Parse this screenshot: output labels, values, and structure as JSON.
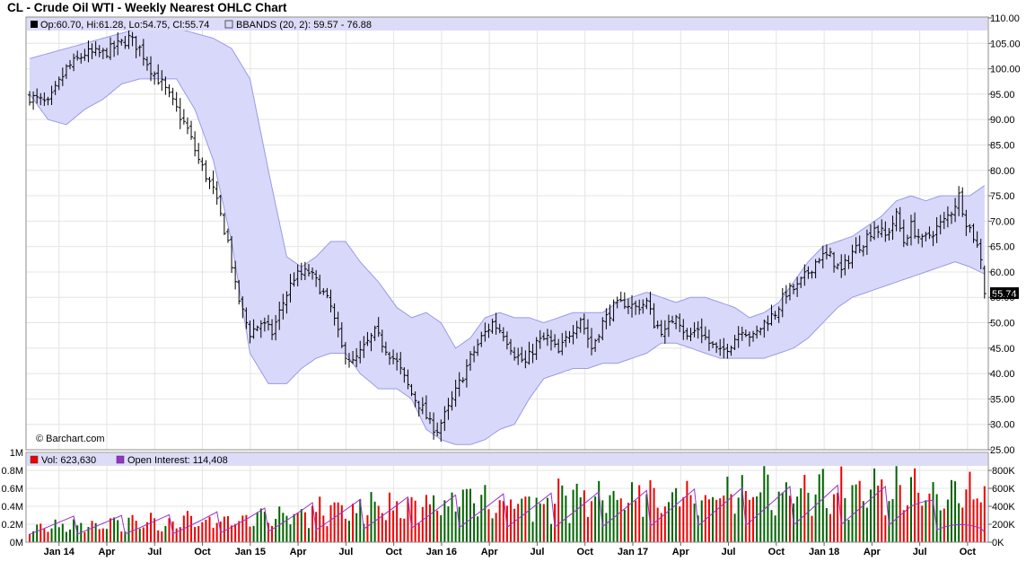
{
  "title": "CL - Crude Oil WTI - Weekly Nearest OHLC Chart",
  "watermark": "© Barchart.com",
  "price_legend": {
    "ohlc": "Op:60.70, Hi:61.28, Lo:54.75, Cl:55.74",
    "bbands": "BBANDS (20, 2): 59.57 - 76.88"
  },
  "last_price_label": "55.74",
  "volume_legend": {
    "vol": "Vol: 623,630",
    "oi": "Open Interest: 114,408"
  },
  "colors": {
    "ohlc_bar": "#000000",
    "band_fill": "#d8d8fb",
    "band_line": "#9a9ae8",
    "volume_up": "#006400",
    "volume_down": "#ee0000",
    "open_interest": "#9932cc",
    "grid": "#e4e4e4",
    "legend_band": "#dcdcf8"
  },
  "chart_data": [
    {
      "type": "ohlc",
      "title": "CL - Crude Oil WTI - Weekly Nearest OHLC Chart",
      "x_tick_labels": [
        "Jan 14",
        "Apr",
        "Jul",
        "Oct",
        "Jan 15",
        "Apr",
        "Jul",
        "Oct",
        "Jan 16",
        "Apr",
        "Jul",
        "Oct",
        "Jan 17",
        "Apr",
        "Jul",
        "Oct",
        "Jan 18",
        "Apr",
        "Jul",
        "Oct"
      ],
      "y_tick_labels": [
        "25.00",
        "30.00",
        "35.00",
        "40.00",
        "45.00",
        "50.00",
        "55.00",
        "60.00",
        "65.00",
        "70.00",
        "75.00",
        "80.00",
        "85.00",
        "90.00",
        "95.00",
        "100.00",
        "105.00",
        "110.00"
      ],
      "ylim": [
        25,
        110
      ],
      "grid": true,
      "y_axis_side": "right",
      "latest_bar": {
        "open": 60.7,
        "high": 61.28,
        "low": 54.75,
        "close": 55.74
      },
      "bbands_latest": {
        "period": 20,
        "stddev": 2,
        "lower": 59.57,
        "upper": 76.88
      },
      "close_keypoints": [
        [
          0,
          94.5
        ],
        [
          5,
          93
        ],
        [
          10,
          100
        ],
        [
          15,
          103
        ],
        [
          20,
          103
        ],
        [
          25,
          105
        ],
        [
          27,
          106
        ],
        [
          30,
          104
        ],
        [
          33,
          100
        ],
        [
          36,
          97
        ],
        [
          40,
          92
        ],
        [
          43,
          88
        ],
        [
          46,
          82
        ],
        [
          50,
          76
        ],
        [
          54,
          66
        ],
        [
          56,
          57
        ],
        [
          58,
          52
        ],
        [
          60,
          48
        ],
        [
          63,
          50
        ],
        [
          66,
          48
        ],
        [
          69,
          54
        ],
        [
          72,
          59
        ],
        [
          76,
          60
        ],
        [
          79,
          57
        ],
        [
          82,
          53
        ],
        [
          85,
          45
        ],
        [
          88,
          42
        ],
        [
          91,
          45
        ],
        [
          94,
          48
        ],
        [
          97,
          45
        ],
        [
          100,
          42
        ],
        [
          104,
          36
        ],
        [
          107,
          33
        ],
        [
          109,
          30
        ],
        [
          111,
          29
        ],
        [
          114,
          33
        ],
        [
          117,
          38
        ],
        [
          120,
          43
        ],
        [
          123,
          47
        ],
        [
          126,
          50
        ],
        [
          129,
          48
        ],
        [
          132,
          44
        ],
        [
          135,
          42
        ],
        [
          138,
          46
        ],
        [
          141,
          47
        ],
        [
          144,
          44
        ],
        [
          147,
          48
        ],
        [
          150,
          51
        ],
        [
          153,
          45
        ],
        [
          156,
          50
        ],
        [
          159,
          53
        ],
        [
          162,
          54
        ],
        [
          165,
          53
        ],
        [
          168,
          54
        ],
        [
          170,
          50
        ],
        [
          173,
          48
        ],
        [
          176,
          52
        ],
        [
          179,
          47
        ],
        [
          182,
          49
        ],
        [
          185,
          46
        ],
        [
          188,
          44
        ],
        [
          191,
          46
        ],
        [
          194,
          49
        ],
        [
          197,
          47
        ],
        [
          200,
          50
        ],
        [
          203,
          52
        ],
        [
          206,
          56
        ],
        [
          209,
          57
        ],
        [
          212,
          60
        ],
        [
          215,
          63
        ],
        [
          218,
          63
        ],
        [
          221,
          60
        ],
        [
          224,
          64
        ],
        [
          227,
          66
        ],
        [
          230,
          69
        ],
        [
          233,
          67
        ],
        [
          236,
          71
        ],
        [
          238,
          66
        ],
        [
          240,
          69
        ],
        [
          243,
          66
        ],
        [
          246,
          68
        ],
        [
          249,
          70
        ],
        [
          251,
          72
        ],
        [
          253,
          75
        ],
        [
          255,
          70
        ],
        [
          257,
          67
        ],
        [
          259,
          63
        ],
        [
          260,
          56
        ]
      ],
      "upper_band_keypoints": [
        [
          0,
          102
        ],
        [
          5,
          103
        ],
        [
          10,
          104
        ],
        [
          15,
          105
        ],
        [
          20,
          106
        ],
        [
          25,
          107
        ],
        [
          30,
          108
        ],
        [
          35,
          108
        ],
        [
          40,
          108
        ],
        [
          45,
          107
        ],
        [
          50,
          106
        ],
        [
          55,
          104
        ],
        [
          60,
          98
        ],
        [
          65,
          80
        ],
        [
          70,
          63
        ],
        [
          74,
          61
        ],
        [
          78,
          63
        ],
        [
          82,
          66
        ],
        [
          86,
          66
        ],
        [
          90,
          62
        ],
        [
          95,
          58
        ],
        [
          100,
          53
        ],
        [
          104,
          51
        ],
        [
          108,
          52
        ],
        [
          112,
          50
        ],
        [
          116,
          45
        ],
        [
          120,
          47
        ],
        [
          124,
          51
        ],
        [
          128,
          52
        ],
        [
          132,
          51
        ],
        [
          136,
          51
        ],
        [
          140,
          50
        ],
        [
          144,
          51
        ],
        [
          148,
          52
        ],
        [
          152,
          52
        ],
        [
          156,
          52
        ],
        [
          160,
          54
        ],
        [
          164,
          55
        ],
        [
          168,
          56
        ],
        [
          172,
          55
        ],
        [
          176,
          54
        ],
        [
          180,
          55
        ],
        [
          184,
          55
        ],
        [
          188,
          54
        ],
        [
          192,
          53
        ],
        [
          196,
          51
        ],
        [
          200,
          52
        ],
        [
          204,
          54
        ],
        [
          208,
          58
        ],
        [
          212,
          62
        ],
        [
          216,
          65
        ],
        [
          220,
          66
        ],
        [
          224,
          67
        ],
        [
          228,
          69
        ],
        [
          232,
          71
        ],
        [
          236,
          74
        ],
        [
          240,
          75
        ],
        [
          244,
          74
        ],
        [
          248,
          75
        ],
        [
          252,
          75
        ],
        [
          256,
          75
        ],
        [
          260,
          77
        ]
      ],
      "lower_band_keypoints": [
        [
          0,
          95
        ],
        [
          5,
          90
        ],
        [
          10,
          89
        ],
        [
          15,
          92
        ],
        [
          20,
          94
        ],
        [
          25,
          97
        ],
        [
          30,
          98
        ],
        [
          35,
          98
        ],
        [
          40,
          98
        ],
        [
          45,
          92
        ],
        [
          50,
          82
        ],
        [
          55,
          66
        ],
        [
          60,
          44
        ],
        [
          65,
          38
        ],
        [
          70,
          38
        ],
        [
          74,
          41
        ],
        [
          78,
          43
        ],
        [
          82,
          44
        ],
        [
          86,
          44
        ],
        [
          90,
          40
        ],
        [
          95,
          37
        ],
        [
          100,
          37
        ],
        [
          104,
          35
        ],
        [
          108,
          29
        ],
        [
          112,
          27
        ],
        [
          116,
          26
        ],
        [
          120,
          26
        ],
        [
          124,
          27
        ],
        [
          128,
          29
        ],
        [
          132,
          30
        ],
        [
          136,
          35
        ],
        [
          140,
          39
        ],
        [
          144,
          40
        ],
        [
          148,
          41
        ],
        [
          152,
          41
        ],
        [
          156,
          42
        ],
        [
          160,
          42
        ],
        [
          164,
          43
        ],
        [
          168,
          44
        ],
        [
          172,
          46
        ],
        [
          176,
          46
        ],
        [
          180,
          45
        ],
        [
          184,
          44
        ],
        [
          188,
          43
        ],
        [
          192,
          43
        ],
        [
          196,
          43
        ],
        [
          200,
          43
        ],
        [
          204,
          44
        ],
        [
          208,
          45
        ],
        [
          212,
          47
        ],
        [
          216,
          50
        ],
        [
          220,
          53
        ],
        [
          224,
          55
        ],
        [
          228,
          56
        ],
        [
          232,
          57
        ],
        [
          236,
          58
        ],
        [
          240,
          59
        ],
        [
          244,
          60
        ],
        [
          248,
          61
        ],
        [
          252,
          62
        ],
        [
          256,
          61
        ],
        [
          260,
          59.6
        ]
      ]
    },
    {
      "type": "bar",
      "title": "",
      "series": [
        {
          "name": "Vol",
          "latest": 623630
        },
        {
          "name": "Open Interest",
          "latest": 114408
        }
      ],
      "left_tick_labels": [
        "0M",
        "0.2M",
        "0.4M",
        "0.6M",
        "0.8M",
        "1M"
      ],
      "right_tick_labels": [
        "0K",
        "200K",
        "400K",
        "600K",
        "800K"
      ],
      "left_ylim": [
        0,
        1000000
      ],
      "right_ylim": [
        0,
        850000
      ],
      "volume_keypoints": [
        [
          0,
          200000
        ],
        [
          20,
          230000
        ],
        [
          40,
          250000
        ],
        [
          60,
          320000
        ],
        [
          80,
          420000
        ],
        [
          100,
          450000
        ],
        [
          120,
          520000
        ],
        [
          140,
          540000
        ],
        [
          160,
          580000
        ],
        [
          180,
          620000
        ],
        [
          200,
          660000
        ],
        [
          220,
          680000
        ],
        [
          240,
          650000
        ],
        [
          260,
          623630
        ]
      ],
      "open_interest_keypoints": [
        [
          0,
          250000
        ],
        [
          20,
          260000
        ],
        [
          40,
          270000
        ],
        [
          60,
          320000
        ],
        [
          80,
          400000
        ],
        [
          100,
          440000
        ],
        [
          120,
          470000
        ],
        [
          140,
          480000
        ],
        [
          160,
          500000
        ],
        [
          180,
          520000
        ],
        [
          200,
          540000
        ],
        [
          220,
          560000
        ],
        [
          240,
          540000
        ],
        [
          260,
          114408
        ]
      ],
      "grid": true
    }
  ]
}
